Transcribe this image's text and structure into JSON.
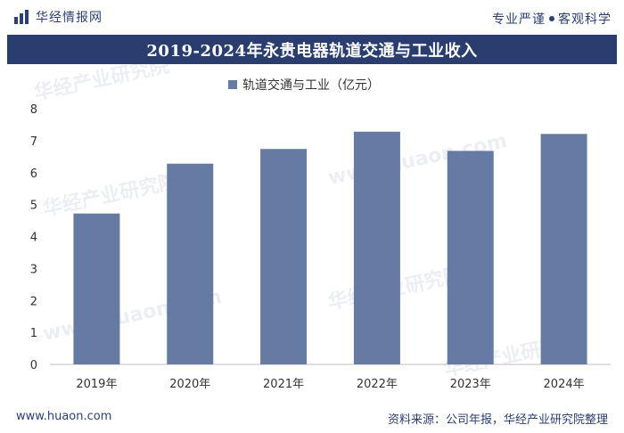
{
  "header": {
    "brand": "华经情报网",
    "slogan_left": "专业严谨",
    "slogan_right": "客观科学"
  },
  "title": "2019-2024年永贵电器轨道交通与工业收入",
  "watermarks": [
    "华经产业研究院",
    "www.huaon.com"
  ],
  "chart_data": {
    "type": "bar",
    "title": "2019-2024年永贵电器轨道交通与工业收入",
    "categories": [
      "2019年",
      "2020年",
      "2021年",
      "2022年",
      "2023年",
      "2024年"
    ],
    "series": [
      {
        "name": "轨道交通与工业（亿元）",
        "values": [
          4.72,
          6.28,
          6.74,
          7.28,
          6.68,
          7.21
        ]
      }
    ],
    "yticks": [
      "0",
      "1",
      "2",
      "3",
      "4",
      "5",
      "6",
      "7",
      "8"
    ],
    "ylim": [
      0,
      8
    ],
    "xlabel": "",
    "ylabel": "",
    "legend": "top-center",
    "grid": false,
    "colors": {
      "bar": "#657ba3",
      "axis": "#bfbfbf",
      "text": "#333333"
    }
  },
  "footer": {
    "url": "www.huaon.com",
    "source": "资料来源：公司年报，华经产业研究院整理"
  }
}
